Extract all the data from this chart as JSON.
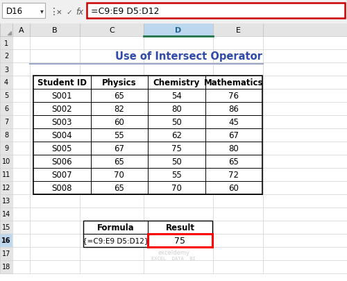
{
  "title": "Use of Intersect Operator",
  "title_color": "#2E4BAA",
  "formula_bar_text": "=C9:E9 D5:D12",
  "cell_ref": "D16",
  "col_letters": [
    "A",
    "B",
    "C",
    "D",
    "E"
  ],
  "table_headers": [
    "Student ID",
    "Physics",
    "Chemistry",
    "Mathematics"
  ],
  "table_data": [
    [
      "S001",
      "65",
      "54",
      "76"
    ],
    [
      "S002",
      "82",
      "80",
      "86"
    ],
    [
      "S003",
      "60",
      "50",
      "45"
    ],
    [
      "S004",
      "55",
      "62",
      "67"
    ],
    [
      "S005",
      "67",
      "75",
      "80"
    ],
    [
      "S006",
      "65",
      "50",
      "65"
    ],
    [
      "S007",
      "70",
      "55",
      "72"
    ],
    [
      "S008",
      "65",
      "70",
      "60"
    ]
  ],
  "result_table_headers": [
    "Formula",
    "Result"
  ],
  "result_formula": "{=C9:E9 D5:D12}",
  "result_value": "75",
  "bg_color": "#FFFFFF",
  "toolbar_bg": "#F0F0F0",
  "col_hdr_bg": "#E4E4E4",
  "row_hdr_bg": "#E4E4E4",
  "selected_col_bg": "#BDD7EE",
  "selected_col_text": "#1F6391",
  "selected_row_bg": "#BDD7EE",
  "grid_line_color": "#D0D0D0",
  "table_border_color": "#000000",
  "formula_border_color": "#CC0000",
  "result_border_color": "#FF0000",
  "underline_color": "#9DA8C7",
  "watermark_line1": "exceldemy",
  "watermark_line2": "EXCEL  DATA  BI",
  "watermark_color": "#BBBBBB",
  "namebox_border": "#AAAAAA",
  "toolbar_icon_color": "#555555",
  "green_indicator": "#217346"
}
